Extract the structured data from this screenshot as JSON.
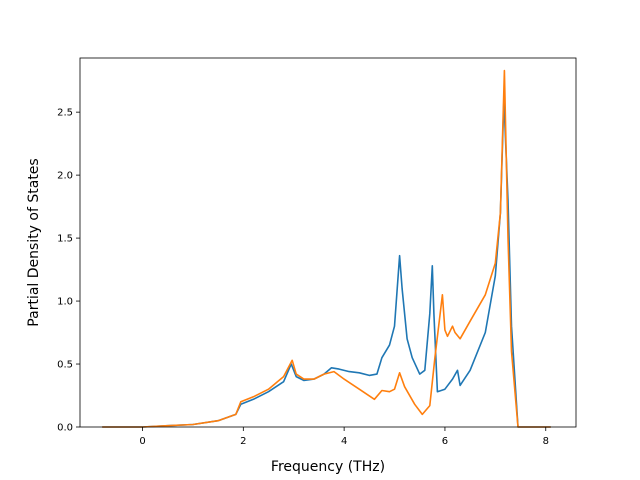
{
  "chart_data": {
    "type": "line",
    "xlabel": "Frequency (THz)",
    "ylabel": "Partial Density of States",
    "xlim": [
      -1.24,
      8.6
    ],
    "ylim": [
      0.0,
      2.93
    ],
    "xticks": [
      "0",
      "2",
      "4",
      "6",
      "8"
    ],
    "yticks": [
      "0.0",
      "0.5",
      "1.0",
      "1.5",
      "2.0",
      "2.5"
    ],
    "grid": false,
    "legend": "none",
    "series": [
      {
        "color": "#1f77b4",
        "x": [
          -0.8,
          -0.5,
          0.0,
          0.5,
          1.0,
          1.5,
          1.85,
          1.95,
          2.2,
          2.5,
          2.8,
          2.95,
          3.05,
          3.2,
          3.4,
          3.6,
          3.75,
          3.9,
          4.1,
          4.3,
          4.5,
          4.65,
          4.75,
          4.9,
          5.0,
          5.1,
          5.15,
          5.25,
          5.35,
          5.5,
          5.6,
          5.7,
          5.75,
          5.78,
          5.85,
          6.0,
          6.15,
          6.25,
          6.3,
          6.5,
          6.8,
          7.0,
          7.1,
          7.17,
          7.25,
          7.32,
          7.45,
          7.6,
          8.1
        ],
        "y": [
          0.0,
          0.0,
          0.0,
          0.01,
          0.02,
          0.05,
          0.1,
          0.18,
          0.22,
          0.28,
          0.36,
          0.5,
          0.4,
          0.37,
          0.38,
          0.42,
          0.47,
          0.46,
          0.44,
          0.43,
          0.41,
          0.42,
          0.55,
          0.65,
          0.8,
          1.36,
          1.1,
          0.7,
          0.55,
          0.42,
          0.45,
          0.9,
          1.28,
          0.9,
          0.28,
          0.3,
          0.38,
          0.45,
          0.33,
          0.45,
          0.75,
          1.2,
          1.7,
          2.6,
          1.8,
          0.8,
          0.0,
          0.0,
          0.0
        ]
      },
      {
        "color": "#ff7f0e",
        "x": [
          -0.8,
          -0.5,
          0.0,
          0.5,
          1.0,
          1.5,
          1.85,
          1.95,
          2.2,
          2.5,
          2.8,
          2.97,
          3.05,
          3.2,
          3.4,
          3.6,
          3.8,
          4.0,
          4.3,
          4.6,
          4.75,
          4.9,
          5.0,
          5.1,
          5.2,
          5.4,
          5.55,
          5.7,
          5.8,
          5.95,
          6.0,
          6.05,
          6.15,
          6.2,
          6.3,
          6.5,
          6.8,
          7.0,
          7.1,
          7.18,
          7.25,
          7.32,
          7.45,
          7.6,
          8.1
        ],
        "y": [
          0.0,
          0.0,
          0.0,
          0.01,
          0.02,
          0.05,
          0.1,
          0.2,
          0.24,
          0.3,
          0.4,
          0.53,
          0.42,
          0.38,
          0.38,
          0.42,
          0.44,
          0.38,
          0.3,
          0.22,
          0.29,
          0.28,
          0.3,
          0.43,
          0.32,
          0.18,
          0.1,
          0.17,
          0.55,
          1.05,
          0.77,
          0.72,
          0.8,
          0.75,
          0.7,
          0.84,
          1.05,
          1.3,
          1.7,
          2.83,
          1.5,
          0.6,
          0.0,
          0.0,
          0.0
        ]
      }
    ]
  }
}
